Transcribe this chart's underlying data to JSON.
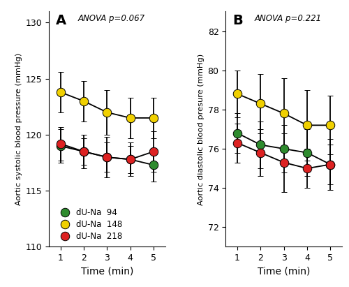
{
  "time": [
    1,
    2,
    3,
    4,
    5
  ],
  "panel_A": {
    "label": "A",
    "anova_text": "ANOVA p=0.067",
    "ylabel": "Aortic systolic blood pressure (mmHg)",
    "ylim": [
      110,
      131
    ],
    "yticks": [
      110,
      115,
      120,
      125,
      130
    ],
    "series": [
      {
        "label": "dU-Na  94",
        "color": "#2e8b2e",
        "means": [
          119.0,
          118.5,
          118.0,
          117.8,
          117.3
        ],
        "sems": [
          1.5,
          1.2,
          1.3,
          1.2,
          1.5
        ]
      },
      {
        "label": "dU-Na  148",
        "color": "#f0d000",
        "means": [
          123.8,
          123.0,
          122.0,
          121.5,
          121.5
        ],
        "sems": [
          1.8,
          1.8,
          2.0,
          1.8,
          1.8
        ]
      },
      {
        "label": "dU-Na  218",
        "color": "#dd2222",
        "means": [
          119.2,
          118.5,
          118.0,
          117.8,
          118.5
        ],
        "sems": [
          1.5,
          1.5,
          1.8,
          1.5,
          1.8
        ]
      }
    ]
  },
  "panel_B": {
    "label": "B",
    "anova_text": "ANOVA p=0.221",
    "ylabel": "Aortic diastolic blood presure (mmHg)",
    "ylim": [
      71,
      83
    ],
    "yticks": [
      72,
      74,
      76,
      78,
      80,
      82
    ],
    "series": [
      {
        "label": "dU-Na  94",
        "color": "#2e8b2e",
        "means": [
          76.8,
          76.2,
          76.0,
          75.8,
          75.2
        ],
        "sems": [
          1.0,
          1.2,
          1.2,
          1.2,
          1.0
        ]
      },
      {
        "label": "dU-Na  148",
        "color": "#f0d000",
        "means": [
          78.8,
          78.3,
          77.8,
          77.2,
          77.2
        ],
        "sems": [
          1.2,
          1.5,
          1.8,
          1.8,
          1.5
        ]
      },
      {
        "label": "dU-Na  218",
        "color": "#dd2222",
        "means": [
          76.3,
          75.8,
          75.3,
          75.0,
          75.2
        ],
        "sems": [
          1.0,
          1.2,
          1.5,
          1.0,
          1.3
        ]
      }
    ]
  },
  "xlabel": "Time (min)",
  "marker_size": 9,
  "linewidth": 1.3,
  "capsize": 3,
  "elinewidth": 1.3,
  "capthick": 1.3,
  "background_color": "#ffffff"
}
